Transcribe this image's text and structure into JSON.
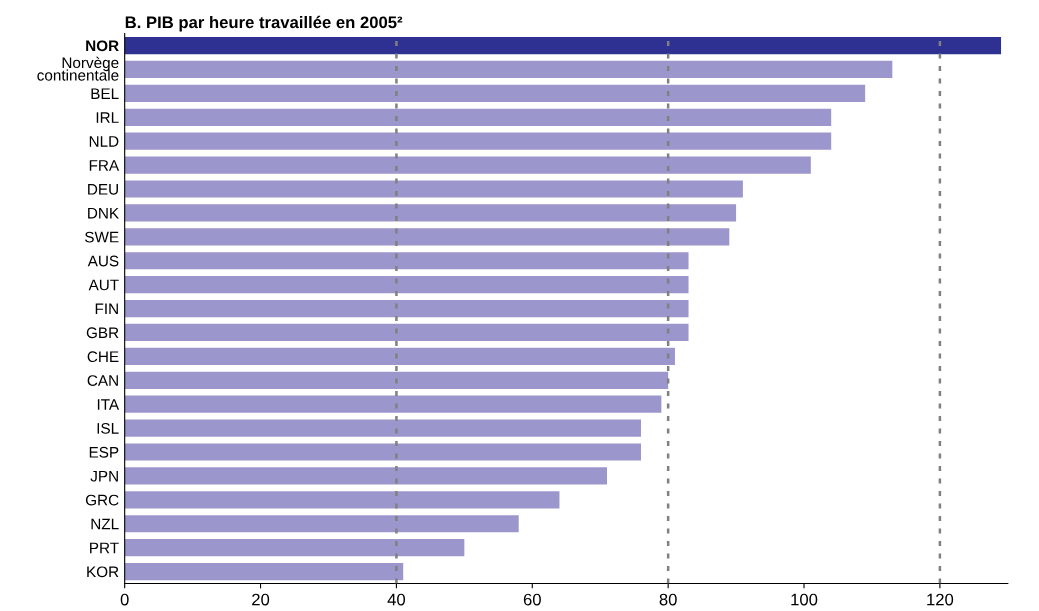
{
  "chart_data": {
    "type": "bar",
    "orientation": "horizontal",
    "title": "B. PIB par heure travaillée en 2005²",
    "categories": [
      "NOR",
      "Norvège\ncontinentale",
      "BEL",
      "IRL",
      "NLD",
      "FRA",
      "DEU",
      "DNK",
      "SWE",
      "AUS",
      "AUT",
      "FIN",
      "GBR",
      "CHE",
      "CAN",
      "ITA",
      "ISL",
      "ESP",
      "JPN",
      "GRC",
      "NZL",
      "PRT",
      "KOR"
    ],
    "values": [
      129,
      113,
      109,
      104,
      104,
      101,
      91,
      90,
      89,
      83,
      83,
      83,
      83,
      81,
      80,
      79,
      76,
      76,
      71,
      64,
      58,
      50,
      41
    ],
    "color": "#9b96cc",
    "colors": [
      "#2e3192",
      "#9b96cc",
      "#9b96cc",
      "#9b96cc",
      "#9b96cc",
      "#9b96cc",
      "#9b96cc",
      "#9b96cc",
      "#9b96cc",
      "#9b96cc",
      "#9b96cc",
      "#9b96cc",
      "#9b96cc",
      "#9b96cc",
      "#9b96cc",
      "#9b96cc",
      "#9b96cc",
      "#9b96cc",
      "#9b96cc",
      "#9b96cc",
      "#9b96cc",
      "#9b96cc",
      "#9b96cc"
    ],
    "xlim": [
      0,
      130
    ],
    "xticks": [
      0,
      20,
      40,
      60,
      80,
      100,
      120
    ],
    "ref_lines": [
      {
        "axis": "x",
        "value": 40,
        "color": "#808080",
        "line_style": "dotted"
      },
      {
        "axis": "x",
        "value": 80,
        "color": "#808080",
        "line_style": "dotted"
      },
      {
        "axis": "x",
        "value": 120,
        "color": "#808080",
        "line_style": "dotted"
      }
    ],
    "grid": false,
    "legend": false
  }
}
